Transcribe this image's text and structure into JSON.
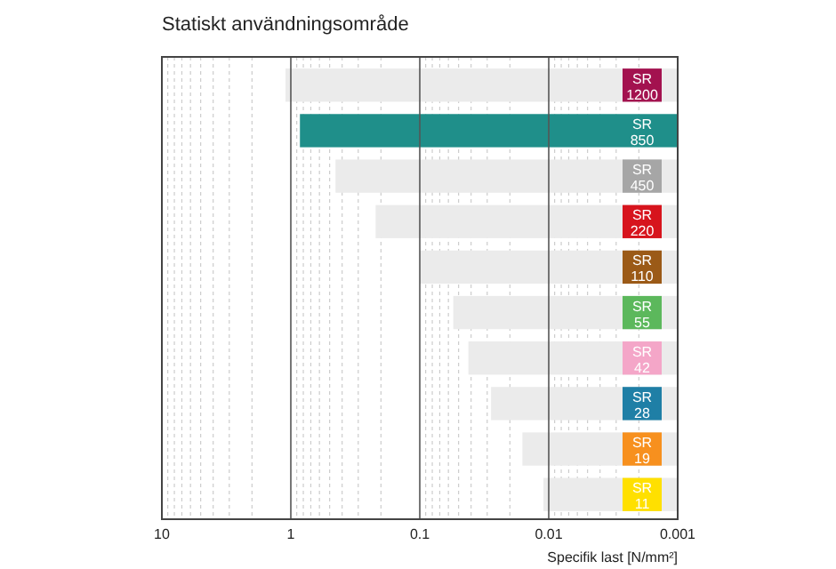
{
  "chart_data": {
    "type": "bar",
    "orientation": "horizontal",
    "log": "x",
    "title": "Statiskt användningsområde",
    "xlabel": "Specifik last [N/mm²]",
    "categories": [
      "SR 1200",
      "SR 850",
      "SR 450",
      "SR 220",
      "SR 110",
      "SR 55",
      "SR 42",
      "SR 28",
      "SR 19",
      "SR 11"
    ],
    "values": [
      1.1,
      0.85,
      0.45,
      0.22,
      0.1,
      0.055,
      0.042,
      0.028,
      0.016,
      0.011
    ],
    "colors": [
      "#ebebeb",
      "#1f8f8a",
      "#ebebeb",
      "#ebebeb",
      "#ebebeb",
      "#ebebeb",
      "#ebebeb",
      "#ebebeb",
      "#ebebeb",
      "#ebebeb"
    ],
    "xlim": [
      10,
      0.001
    ],
    "xticks": [
      10,
      1,
      0.1,
      0.01,
      0.001
    ],
    "grid": "x"
  }
}
